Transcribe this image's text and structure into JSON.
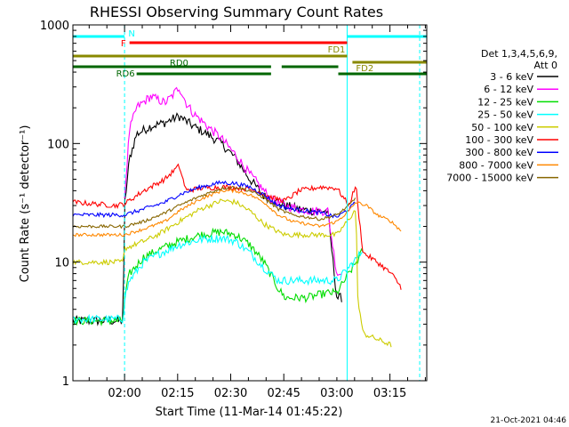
{
  "chart_data": {
    "type": "line",
    "title": "RHESSI Observing Summary Count Rates",
    "xlabel": "Start Time (11-Mar-14 01:45:22)",
    "ylabel": "Count Rate (s⁻¹ detector⁻¹)",
    "ylog": true,
    "ylim": [
      1,
      1000
    ],
    "xlim": [
      0,
      100
    ],
    "x_unit": "minutes after 01:45:22",
    "y_ticks": [
      {
        "value": 1,
        "label": "1"
      },
      {
        "value": 10,
        "label": "10"
      },
      {
        "value": 100,
        "label": "100"
      },
      {
        "value": 1000,
        "label": "1000"
      }
    ],
    "x_ticks": [
      {
        "value": 14.6,
        "label": "02:00"
      },
      {
        "value": 29.6,
        "label": "02:15"
      },
      {
        "value": 44.6,
        "label": "02:30"
      },
      {
        "value": 59.6,
        "label": "02:45"
      },
      {
        "value": 74.6,
        "label": "03:00"
      },
      {
        "value": 89.6,
        "label": "03:15"
      }
    ],
    "legend": {
      "header_line1": "Det 1,3,4,5,6,9,",
      "header_line2": "Att 0",
      "placement": "right"
    },
    "series": [
      {
        "name": "3 - 6 keV",
        "color": "#000000",
        "noise": 0.09,
        "x": [
          0,
          14.2,
          14.6,
          16,
          18,
          22,
          26,
          30,
          34,
          38,
          42,
          46,
          50,
          54,
          56,
          60,
          64,
          68,
          72,
          74.6,
          76
        ],
        "y": [
          3.2,
          3.2,
          30,
          75,
          120,
          140,
          150,
          170,
          140,
          120,
          100,
          75,
          50,
          36,
          34,
          30,
          28,
          27,
          27,
          5,
          5
        ]
      },
      {
        "name": "6 - 12 keV",
        "color": "#ff00ff",
        "noise": 0.09,
        "x": [
          14.6,
          16,
          18,
          22,
          26,
          28,
          30,
          32,
          34,
          38,
          42,
          46,
          50,
          54,
          56,
          60,
          64,
          68,
          72,
          74.6,
          76
        ],
        "y": [
          35,
          130,
          200,
          250,
          220,
          250,
          300,
          220,
          180,
          140,
          110,
          80,
          55,
          40,
          34,
          30,
          28,
          27,
          27,
          8,
          8
        ]
      },
      {
        "name": "12 - 25 keV",
        "color": "#00dd00",
        "noise": 0.08,
        "x": [
          0,
          14.2,
          14.6,
          16,
          20,
          25,
          30,
          36,
          42,
          46,
          50,
          54,
          58,
          60,
          66,
          72,
          74.6,
          78,
          81,
          82
        ],
        "y": [
          3.2,
          3.2,
          5,
          8,
          11,
          13,
          15,
          17,
          18,
          17,
          14,
          10,
          6,
          5,
          5,
          5.5,
          5.5,
          8,
          11,
          13
        ]
      },
      {
        "name": "25 - 50 keV",
        "color": "#00ffff",
        "noise": 0.08,
        "x": [
          0,
          14.2,
          14.6,
          16,
          20,
          25,
          30,
          36,
          42,
          46,
          50,
          54,
          58,
          60,
          66,
          72,
          74.6,
          78,
          81,
          82
        ],
        "y": [
          3.3,
          3.3,
          5,
          7,
          10,
          12,
          14,
          15.5,
          16,
          15,
          12,
          9,
          7,
          7,
          7,
          7,
          7,
          9,
          11.5,
          13
        ]
      },
      {
        "name": "50 - 100 keV",
        "color": "#cccc00",
        "noise": 0.05,
        "x": [
          0,
          14.2,
          14.6,
          20,
          24,
          30,
          36,
          42,
          46,
          50,
          54,
          58,
          60,
          66,
          72,
          74.6,
          78,
          80,
          80.5,
          82,
          90
        ],
        "y": [
          10,
          10,
          13,
          15,
          17,
          22,
          28,
          33,
          32,
          27,
          21,
          18,
          17,
          17,
          17,
          17,
          23,
          28,
          5,
          2.5,
          2
        ]
      },
      {
        "name": "100 - 300 keV",
        "color": "#ff0000",
        "noise": 0.05,
        "x": [
          0,
          12,
          14.6,
          20,
          26,
          30,
          32,
          36,
          42,
          48,
          52,
          56,
          60,
          64,
          70,
          74.6,
          78,
          80,
          80.5,
          82,
          86,
          90,
          93
        ],
        "y": [
          32,
          30,
          31,
          40,
          50,
          65,
          40,
          42,
          43,
          42,
          40,
          35,
          33,
          40,
          43,
          42,
          30,
          45,
          30,
          12,
          10,
          8,
          6
        ]
      },
      {
        "name": "300 - 800 keV",
        "color": "#0000ff",
        "noise": 0.04,
        "x": [
          0,
          14.6,
          20,
          26,
          30,
          36,
          42,
          46,
          50,
          54,
          58,
          62,
          66,
          70,
          74.6,
          78,
          80
        ],
        "y": [
          25,
          25,
          28,
          32,
          37,
          43,
          47,
          46,
          43,
          37,
          30,
          28,
          27,
          26,
          24,
          28,
          32
        ]
      },
      {
        "name": "800 - 7000 keV",
        "color": "#ff8800",
        "noise": 0.03,
        "x": [
          0,
          14.6,
          20,
          26,
          30,
          36,
          42,
          46,
          50,
          54,
          58,
          62,
          66,
          70,
          74.6,
          78,
          80,
          83,
          86,
          90,
          93
        ],
        "y": [
          17,
          17,
          19,
          22,
          27,
          34,
          40,
          40,
          37,
          32,
          25,
          22,
          21,
          20,
          22,
          27,
          32,
          30,
          25,
          22,
          18
        ]
      },
      {
        "name": "7000 - 15000 keV",
        "color": "#886600",
        "noise": 0.03,
        "x": [
          0,
          14.6,
          20,
          26,
          30,
          36,
          42,
          46,
          50,
          54,
          58,
          62,
          66,
          70,
          74.6,
          78,
          80
        ],
        "y": [
          20,
          20,
          22,
          26,
          30,
          36,
          42,
          43,
          40,
          35,
          28,
          25,
          24,
          23,
          25,
          30,
          35
        ]
      }
    ],
    "flag_bars": [
      {
        "label": "N",
        "color": "#00ffff",
        "label_side": "start",
        "segments": [
          [
            0,
            14.6
          ],
          [
            77.5,
            100
          ]
        ]
      },
      {
        "label": "F",
        "color": "#ff0000",
        "label_side": "start",
        "segments": [
          [
            16,
            77.5
          ]
        ]
      },
      {
        "label": "FD1",
        "color": "#888800",
        "label_side": "end",
        "segments": [
          [
            0,
            77.5
          ]
        ]
      },
      {
        "label": "FD2",
        "color": "#888800",
        "label_side": "start",
        "segments": [
          [
            79,
            100
          ]
        ]
      },
      {
        "label": "RD0",
        "color": "#006600",
        "label_side": "mid",
        "segments": [
          [
            0,
            56
          ],
          [
            59,
            75
          ]
        ]
      },
      {
        "label": "RD6",
        "color": "#006600",
        "label_side": "start",
        "segments": [
          [
            18,
            56
          ],
          [
            75,
            100
          ]
        ]
      }
    ],
    "vlines": [
      {
        "x": 14.6,
        "color": "#00ffff",
        "style": "dashed"
      },
      {
        "x": 77.5,
        "color": "#00ffff",
        "style": "solid"
      },
      {
        "x": 98,
        "color": "#00ffff",
        "style": "dashed"
      }
    ]
  },
  "footer": {
    "timestamp": "21-Oct-2021 04:46"
  }
}
